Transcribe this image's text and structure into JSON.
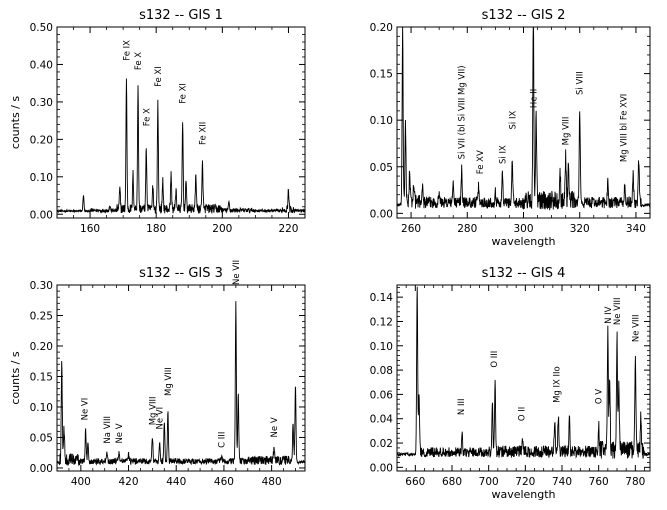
{
  "chart_data": [
    {
      "type": "line",
      "title": "s132 -- GIS 1",
      "xlabel": "",
      "ylabel": "counts / s",
      "xlim": [
        150,
        225
      ],
      "ylim": [
        -0.01,
        0.5
      ],
      "xticks": [
        160,
        180,
        200,
        220
      ],
      "yticks": [
        0.0,
        0.1,
        0.2,
        0.3,
        0.4,
        0.5
      ],
      "ytick_labels": [
        "0.00",
        "0.10",
        "0.20",
        "0.30",
        "0.40",
        "0.50"
      ],
      "baseline": 0.007,
      "wiggles": [
        [
          150,
          160,
          0.005
        ],
        [
          160,
          168,
          0.01
        ],
        [
          168,
          200,
          0.025
        ],
        [
          200,
          210,
          0.012
        ],
        [
          210,
          218,
          0.008
        ],
        [
          218,
          222,
          0.02
        ]
      ],
      "peaks": [
        {
          "x": 158,
          "y": 0.05
        },
        {
          "x": 166,
          "y": 0.02
        },
        {
          "x": 169,
          "y": 0.06
        },
        {
          "x": 171,
          "y": 0.35
        },
        {
          "x": 173,
          "y": 0.1
        },
        {
          "x": 174.5,
          "y": 0.33
        },
        {
          "x": 177,
          "y": 0.17
        },
        {
          "x": 179,
          "y": 0.07
        },
        {
          "x": 180.5,
          "y": 0.29
        },
        {
          "x": 182,
          "y": 0.08
        },
        {
          "x": 184.5,
          "y": 0.1
        },
        {
          "x": 186,
          "y": 0.06
        },
        {
          "x": 188,
          "y": 0.24
        },
        {
          "x": 189,
          "y": 0.08
        },
        {
          "x": 192,
          "y": 0.1
        },
        {
          "x": 194,
          "y": 0.13
        },
        {
          "x": 202,
          "y": 0.03
        },
        {
          "x": 220,
          "y": 0.06
        }
      ],
      "annotations": [
        {
          "text": "Fe IX",
          "x": 171,
          "y": 0.41
        },
        {
          "text": "Fe X",
          "x": 174.5,
          "y": 0.385
        },
        {
          "text": "Fe X",
          "x": 177,
          "y": 0.235
        },
        {
          "text": "Fe XI",
          "x": 180.5,
          "y": 0.34
        },
        {
          "text": "Fe XI",
          "x": 188,
          "y": 0.295
        },
        {
          "text": "Fe XII",
          "x": 194,
          "y": 0.185
        }
      ]
    },
    {
      "type": "line",
      "title": "s132 -- GIS 2",
      "xlabel": "wavelength",
      "ylabel": "",
      "xlim": [
        255,
        345
      ],
      "ylim": [
        -0.005,
        0.2
      ],
      "xticks": [
        260,
        280,
        300,
        320,
        340
      ],
      "yticks": [
        0.0,
        0.05,
        0.1,
        0.15,
        0.2
      ],
      "ytick_labels": [
        "0.00",
        "0.05",
        "0.10",
        "0.15",
        "0.20"
      ],
      "baseline": 0.008,
      "wiggles": [
        [
          257,
          265,
          0.015
        ],
        [
          265,
          300,
          0.012
        ],
        [
          300,
          318,
          0.02
        ],
        [
          318,
          342,
          0.012
        ]
      ],
      "peaks": [
        {
          "x": 257,
          "y": 0.19
        },
        {
          "x": 258,
          "y": 0.09
        },
        {
          "x": 259.5,
          "y": 0.04
        },
        {
          "x": 261,
          "y": 0.03
        },
        {
          "x": 264,
          "y": 0.025
        },
        {
          "x": 270,
          "y": 0.02
        },
        {
          "x": 275,
          "y": 0.03
        },
        {
          "x": 278,
          "y": 0.045
        },
        {
          "x": 284,
          "y": 0.025
        },
        {
          "x": 290,
          "y": 0.02
        },
        {
          "x": 292.5,
          "y": 0.04
        },
        {
          "x": 296,
          "y": 0.055
        },
        {
          "x": 303.5,
          "y": 0.205
        },
        {
          "x": 304.5,
          "y": 0.1
        },
        {
          "x": 313,
          "y": 0.04
        },
        {
          "x": 315,
          "y": 0.055
        },
        {
          "x": 316,
          "y": 0.05
        },
        {
          "x": 320,
          "y": 0.11
        },
        {
          "x": 330,
          "y": 0.03
        },
        {
          "x": 336,
          "y": 0.025
        },
        {
          "x": 339,
          "y": 0.04
        },
        {
          "x": 341,
          "y": 0.055
        }
      ],
      "annotations": [
        {
          "text": "Si VII (bl Si VIII Mg VII)",
          "x": 278,
          "y": 0.058
        },
        {
          "text": "Fe XV",
          "x": 284.5,
          "y": 0.042
        },
        {
          "text": "Si IX",
          "x": 292.5,
          "y": 0.053
        },
        {
          "text": "Si IX",
          "x": 296,
          "y": 0.09
        },
        {
          "text": "He II",
          "x": 303.5,
          "y": 0.113
        },
        {
          "text": "Mg VIII",
          "x": 315,
          "y": 0.073
        },
        {
          "text": "Si VIII",
          "x": 320,
          "y": 0.127
        },
        {
          "text": "Mg VIII bl Fe XVI",
          "x": 335.5,
          "y": 0.055
        }
      ]
    },
    {
      "type": "line",
      "title": "s132 -- GIS 3",
      "xlabel": "",
      "ylabel": "counts / s",
      "xlim": [
        390,
        494
      ],
      "ylim": [
        -0.005,
        0.3
      ],
      "xticks": [
        400,
        420,
        440,
        460,
        480
      ],
      "yticks": [
        0.0,
        0.05,
        0.1,
        0.15,
        0.2,
        0.25,
        0.3
      ],
      "ytick_labels": [
        "0.00",
        "0.05",
        "0.10",
        "0.15",
        "0.20",
        "0.25",
        "0.30"
      ],
      "baseline": 0.008,
      "wiggles": [
        [
          391,
          400,
          0.02
        ],
        [
          400,
          470,
          0.01
        ],
        [
          470,
          490,
          0.015
        ]
      ],
      "peaks": [
        {
          "x": 392,
          "y": 0.17
        },
        {
          "x": 393,
          "y": 0.06
        },
        {
          "x": 402,
          "y": 0.06
        },
        {
          "x": 403,
          "y": 0.04
        },
        {
          "x": 411,
          "y": 0.02
        },
        {
          "x": 416,
          "y": 0.025
        },
        {
          "x": 420,
          "y": 0.02
        },
        {
          "x": 430,
          "y": 0.05
        },
        {
          "x": 433,
          "y": 0.04
        },
        {
          "x": 435,
          "y": 0.075
        },
        {
          "x": 436.5,
          "y": 0.09
        },
        {
          "x": 459,
          "y": 0.015
        },
        {
          "x": 465,
          "y": 0.27
        },
        {
          "x": 466,
          "y": 0.12
        },
        {
          "x": 481,
          "y": 0.03
        },
        {
          "x": 489,
          "y": 0.07
        },
        {
          "x": 490,
          "y": 0.135
        }
      ],
      "annotations": [
        {
          "text": "Ne VI",
          "x": 401.5,
          "y": 0.078
        },
        {
          "text": "Na VIII",
          "x": 411,
          "y": 0.04
        },
        {
          "text": "Ne V",
          "x": 416,
          "y": 0.04
        },
        {
          "text": "Mg VIII",
          "x": 430,
          "y": 0.07
        },
        {
          "text": "Ne VI",
          "x": 433,
          "y": 0.063
        },
        {
          "text": "Mg VIII",
          "x": 436.5,
          "y": 0.118
        },
        {
          "text": "C III",
          "x": 459,
          "y": 0.033
        },
        {
          "text": "Ne VII",
          "x": 465,
          "y": 0.3
        },
        {
          "text": "Ne V",
          "x": 481,
          "y": 0.05
        }
      ]
    },
    {
      "type": "line",
      "title": "s132 -- GIS 4",
      "xlabel": "wavelength",
      "ylabel": "",
      "xlim": [
        650,
        788
      ],
      "ylim": [
        -0.003,
        0.15
      ],
      "xticks": [
        660,
        680,
        700,
        720,
        740,
        760,
        780
      ],
      "yticks": [
        0.0,
        0.02,
        0.04,
        0.06,
        0.08,
        0.1,
        0.12,
        0.14
      ],
      "ytick_labels": [
        "0.00",
        "0.02",
        "0.04",
        "0.06",
        "0.08",
        "0.10",
        "0.12",
        "0.14"
      ],
      "baseline": 0.01,
      "wiggles": [
        [
          662,
          700,
          0.008
        ],
        [
          700,
          760,
          0.01
        ],
        [
          760,
          785,
          0.015
        ]
      ],
      "peaks": [
        {
          "x": 661,
          "y": 0.15
        },
        {
          "x": 662,
          "y": 0.06
        },
        {
          "x": 685.5,
          "y": 0.025
        },
        {
          "x": 702,
          "y": 0.05
        },
        {
          "x": 703.5,
          "y": 0.068
        },
        {
          "x": 718.5,
          "y": 0.022
        },
        {
          "x": 736,
          "y": 0.035
        },
        {
          "x": 738,
          "y": 0.04
        },
        {
          "x": 744,
          "y": 0.038
        },
        {
          "x": 760,
          "y": 0.03
        },
        {
          "x": 765,
          "y": 0.105
        },
        {
          "x": 766,
          "y": 0.07
        },
        {
          "x": 770,
          "y": 0.105
        },
        {
          "x": 771,
          "y": 0.06
        },
        {
          "x": 780,
          "y": 0.088
        },
        {
          "x": 783,
          "y": 0.04
        }
      ],
      "annotations": [
        {
          "text": "N III",
          "x": 685,
          "y": 0.043
        },
        {
          "text": "O III",
          "x": 703,
          "y": 0.082
        },
        {
          "text": "O II",
          "x": 718,
          "y": 0.038
        },
        {
          "text": "Mg IX IIo",
          "x": 737,
          "y": 0.053
        },
        {
          "text": "O V",
          "x": 760,
          "y": 0.052
        },
        {
          "text": "N IV",
          "x": 765,
          "y": 0.118
        },
        {
          "text": "Ne VIII",
          "x": 770,
          "y": 0.117
        },
        {
          "text": "Ne VIII",
          "x": 780,
          "y": 0.103
        }
      ]
    }
  ]
}
